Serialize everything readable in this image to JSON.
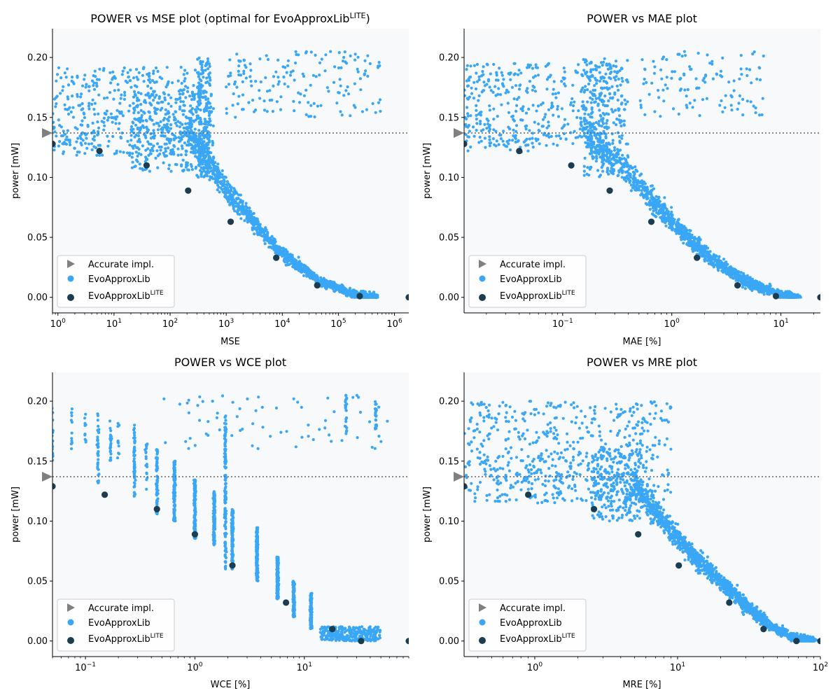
{
  "colors": {
    "plot_bg": "#f7f9fb",
    "evo": "#3aa6f6",
    "lite": "#1c3d50",
    "accurate": "#808080",
    "ref_line": "#666666"
  },
  "chart_data": [
    {
      "type": "scatter",
      "title": "POWER vs MSE plot (optimal for EvoApproxLib",
      "title_sup": "LITE",
      "title_suffix": ")",
      "xlabel": "MSE",
      "ylabel": "power [mW]",
      "xscale": "log",
      "xlim": [
        0.8,
        1800000
      ],
      "ylim": [
        -0.013,
        0.224
      ],
      "xticks": [
        {
          "v": 1,
          "base": "10",
          "exp": "0"
        },
        {
          "v": 10,
          "base": "10",
          "exp": "1"
        },
        {
          "v": 100,
          "base": "10",
          "exp": "2"
        },
        {
          "v": 1000,
          "base": "10",
          "exp": "3"
        },
        {
          "v": 10000,
          "base": "10",
          "exp": "4"
        },
        {
          "v": 100000,
          "base": "10",
          "exp": "5"
        },
        {
          "v": 1000000,
          "base": "10",
          "exp": "6"
        }
      ],
      "yticks": [
        {
          "v": 0.0,
          "label": "0.00"
        },
        {
          "v": 0.05,
          "label": "0.05"
        },
        {
          "v": 0.1,
          "label": "0.10"
        },
        {
          "v": 0.15,
          "label": "0.15"
        },
        {
          "v": 0.2,
          "label": "0.20"
        }
      ],
      "accurate_power": 0.137,
      "lite_points": [
        [
          0.8,
          0.128
        ],
        [
          5.5,
          0.122
        ],
        [
          38,
          0.11
        ],
        [
          210,
          0.089
        ],
        [
          1200,
          0.063
        ],
        [
          7800,
          0.033
        ],
        [
          42000,
          0.01
        ],
        [
          240000,
          0.001
        ],
        [
          1800000,
          0.0
        ]
      ],
      "evo_bands": [
        {
          "x": [
            0.8,
            300
          ],
          "y": [
            0.118,
            0.192
          ],
          "n": 420
        },
        {
          "x": [
            20,
            600
          ],
          "y": [
            0.105,
            0.172
          ],
          "n": 300
        },
        {
          "x": [
            300,
            520
          ],
          "y": [
            0.1,
            0.2
          ],
          "n": 180
        },
        {
          "x": [
            1,
            6
          ],
          "y": [
            0.125,
            0.138
          ],
          "n": 25
        },
        {
          "x": [
            1000,
            600000
          ],
          "y": [
            0.15,
            0.205
          ],
          "n": 170
        }
      ],
      "evo_trend": [
        [
          200,
          0.14
        ],
        [
          1200,
          0.085
        ],
        [
          8000,
          0.04
        ],
        [
          40000,
          0.015
        ],
        [
          200000,
          0.002
        ],
        [
          500000,
          0.0
        ]
      ],
      "evo_trend_n": 1400,
      "evo_trend_spread": 0.013,
      "legend": [
        "Accurate impl.",
        "EvoApproxLib",
        "EvoApproxLib"
      ],
      "legend_sup": "LITE"
    },
    {
      "type": "scatter",
      "title": "POWER vs MAE plot",
      "title_sup": "",
      "title_suffix": "",
      "xlabel": "MAE [%]",
      "ylabel": "power [mW]",
      "xscale": "log",
      "xlim": [
        0.0125,
        23
      ],
      "ylim": [
        -0.013,
        0.224
      ],
      "xticks": [
        {
          "v": 0.1,
          "base": "10",
          "exp": "−1"
        },
        {
          "v": 1,
          "base": "10",
          "exp": "0"
        },
        {
          "v": 10,
          "base": "10",
          "exp": "1"
        }
      ],
      "yticks": [
        {
          "v": 0.0,
          "label": "0.00"
        },
        {
          "v": 0.05,
          "label": "0.05"
        },
        {
          "v": 0.1,
          "label": "0.10"
        },
        {
          "v": 0.15,
          "label": "0.15"
        },
        {
          "v": 0.2,
          "label": "0.20"
        }
      ],
      "accurate_power": 0.137,
      "lite_points": [
        [
          0.0125,
          0.128
        ],
        [
          0.04,
          0.122
        ],
        [
          0.12,
          0.11
        ],
        [
          0.27,
          0.089
        ],
        [
          0.65,
          0.063
        ],
        [
          1.7,
          0.033
        ],
        [
          4.0,
          0.01
        ],
        [
          9.0,
          0.001
        ],
        [
          23,
          0.0
        ]
      ],
      "evo_bands": [
        {
          "x": [
            0.0125,
            0.35
          ],
          "y": [
            0.125,
            0.195
          ],
          "n": 420
        },
        {
          "x": [
            0.15,
            0.4
          ],
          "y": [
            0.1,
            0.2
          ],
          "n": 220
        },
        {
          "x": [
            0.5,
            7
          ],
          "y": [
            0.15,
            0.205
          ],
          "n": 120
        },
        {
          "x": [
            0.0125,
            0.05
          ],
          "y": [
            0.12,
            0.135
          ],
          "n": 20
        }
      ],
      "evo_trend": [
        [
          0.15,
          0.14
        ],
        [
          0.5,
          0.095
        ],
        [
          1.2,
          0.055
        ],
        [
          2.5,
          0.03
        ],
        [
          5,
          0.012
        ],
        [
          10,
          0.002
        ],
        [
          14,
          0.0
        ]
      ],
      "evo_trend_n": 1500,
      "evo_trend_spread": 0.014,
      "legend": [
        "Accurate impl.",
        "EvoApproxLib",
        "EvoApproxLib"
      ],
      "legend_sup": "LITE"
    },
    {
      "type": "scatter",
      "title": "POWER vs WCE plot",
      "title_sup": "",
      "title_suffix": "",
      "xlabel": "WCE [%]",
      "ylabel": "power [mW]",
      "xscale": "log",
      "xlim": [
        0.05,
        90
      ],
      "ylim": [
        -0.013,
        0.224
      ],
      "xticks": [
        {
          "v": 0.1,
          "base": "10",
          "exp": "−1"
        },
        {
          "v": 1,
          "base": "10",
          "exp": "0"
        },
        {
          "v": 10,
          "base": "10",
          "exp": "1"
        }
      ],
      "yticks": [
        {
          "v": 0.0,
          "label": "0.00"
        },
        {
          "v": 0.05,
          "label": "0.05"
        },
        {
          "v": 0.1,
          "label": "0.10"
        },
        {
          "v": 0.15,
          "label": "0.15"
        },
        {
          "v": 0.2,
          "label": "0.20"
        }
      ],
      "accurate_power": 0.137,
      "lite_points": [
        [
          0.05,
          0.129
        ],
        [
          0.15,
          0.122
        ],
        [
          0.45,
          0.11
        ],
        [
          1.0,
          0.089
        ],
        [
          2.2,
          0.063
        ],
        [
          6.8,
          0.032
        ],
        [
          18,
          0.01
        ],
        [
          33,
          0.0
        ],
        [
          90,
          0.0
        ]
      ],
      "evo_columns": [
        {
          "x": 0.05,
          "y": [
            0.15,
            0.195
          ],
          "n": 20
        },
        {
          "x": 0.075,
          "y": [
            0.16,
            0.195
          ],
          "n": 12
        },
        {
          "x": 0.1,
          "y": [
            0.165,
            0.19
          ],
          "n": 10
        },
        {
          "x": 0.13,
          "y": [
            0.13,
            0.19
          ],
          "n": 40
        },
        {
          "x": 0.17,
          "y": [
            0.15,
            0.185
          ],
          "n": 22
        },
        {
          "x": 0.2,
          "y": [
            0.15,
            0.185
          ],
          "n": 10
        },
        {
          "x": 0.28,
          "y": [
            0.12,
            0.18
          ],
          "n": 55
        },
        {
          "x": 0.36,
          "y": [
            0.12,
            0.165
          ],
          "n": 18
        },
        {
          "x": 0.45,
          "y": [
            0.105,
            0.16
          ],
          "n": 70
        },
        {
          "x": 0.65,
          "y": [
            0.1,
            0.15
          ],
          "n": 130
        },
        {
          "x": 1.0,
          "y": [
            0.085,
            0.135
          ],
          "n": 150
        },
        {
          "x": 1.5,
          "y": [
            0.08,
            0.125
          ],
          "n": 130
        },
        {
          "x": 1.9,
          "y": [
            0.06,
            0.19
          ],
          "n": 150
        },
        {
          "x": 2.2,
          "y": [
            0.06,
            0.11
          ],
          "n": 150
        },
        {
          "x": 3.7,
          "y": [
            0.05,
            0.095
          ],
          "n": 200
        },
        {
          "x": 5.7,
          "y": [
            0.035,
            0.07
          ],
          "n": 220
        },
        {
          "x": 8.0,
          "y": [
            0.02,
            0.05
          ],
          "n": 130
        },
        {
          "x": 11.5,
          "y": [
            0.01,
            0.04
          ],
          "n": 160
        },
        {
          "x": 24,
          "y": [
            0.17,
            0.205
          ],
          "n": 25
        },
        {
          "x": 45,
          "y": [
            0.175,
            0.2
          ],
          "n": 25
        }
      ],
      "evo_bands": [
        {
          "x": [
            0.5,
            60
          ],
          "y": [
            0.16,
            0.205
          ],
          "n": 70
        },
        {
          "x": [
            14,
            50
          ],
          "y": [
            0.0,
            0.012
          ],
          "n": 300
        }
      ],
      "legend": [
        "Accurate impl.",
        "EvoApproxLib",
        "EvoApproxLib"
      ],
      "legend_sup": "LITE"
    },
    {
      "type": "scatter",
      "title": "POWER vs MRE plot",
      "title_sup": "",
      "title_suffix": "",
      "xlabel": "MRE [%]",
      "ylabel": "power [mW]",
      "xscale": "log",
      "xlim": [
        0.32,
        100
      ],
      "ylim": [
        -0.013,
        0.224
      ],
      "xticks": [
        {
          "v": 1,
          "base": "10",
          "exp": "0"
        },
        {
          "v": 10,
          "base": "10",
          "exp": "1"
        },
        {
          "v": 100,
          "base": "10",
          "exp": "2"
        }
      ],
      "yticks": [
        {
          "v": 0.0,
          "label": "0.00"
        },
        {
          "v": 0.05,
          "label": "0.05"
        },
        {
          "v": 0.1,
          "label": "0.10"
        },
        {
          "v": 0.15,
          "label": "0.15"
        },
        {
          "v": 0.2,
          "label": "0.20"
        }
      ],
      "accurate_power": 0.137,
      "lite_points": [
        [
          0.32,
          0.129
        ],
        [
          0.9,
          0.122
        ],
        [
          2.6,
          0.11
        ],
        [
          5.3,
          0.089
        ],
        [
          10.2,
          0.063
        ],
        [
          23,
          0.032
        ],
        [
          40,
          0.01
        ],
        [
          68,
          0.0
        ],
        [
          100,
          0.0
        ]
      ],
      "evo_bands": [
        {
          "x": [
            0.32,
            9
          ],
          "y": [
            0.115,
            0.2
          ],
          "n": 550
        },
        {
          "x": [
            2.5,
            5.5
          ],
          "y": [
            0.1,
            0.16
          ],
          "n": 250
        },
        {
          "x": [
            0.5,
            2.5
          ],
          "y": [
            0.13,
            0.15
          ],
          "n": 40
        }
      ],
      "evo_trend": [
        [
          5,
          0.13
        ],
        [
          8,
          0.1
        ],
        [
          13,
          0.07
        ],
        [
          20,
          0.05
        ],
        [
          30,
          0.03
        ],
        [
          45,
          0.012
        ],
        [
          70,
          0.002
        ],
        [
          90,
          0.0
        ]
      ],
      "evo_trend_n": 1500,
      "evo_trend_spread": 0.012,
      "legend": [
        "Accurate impl.",
        "EvoApproxLib",
        "EvoApproxLib"
      ],
      "legend_sup": "LITE"
    }
  ]
}
